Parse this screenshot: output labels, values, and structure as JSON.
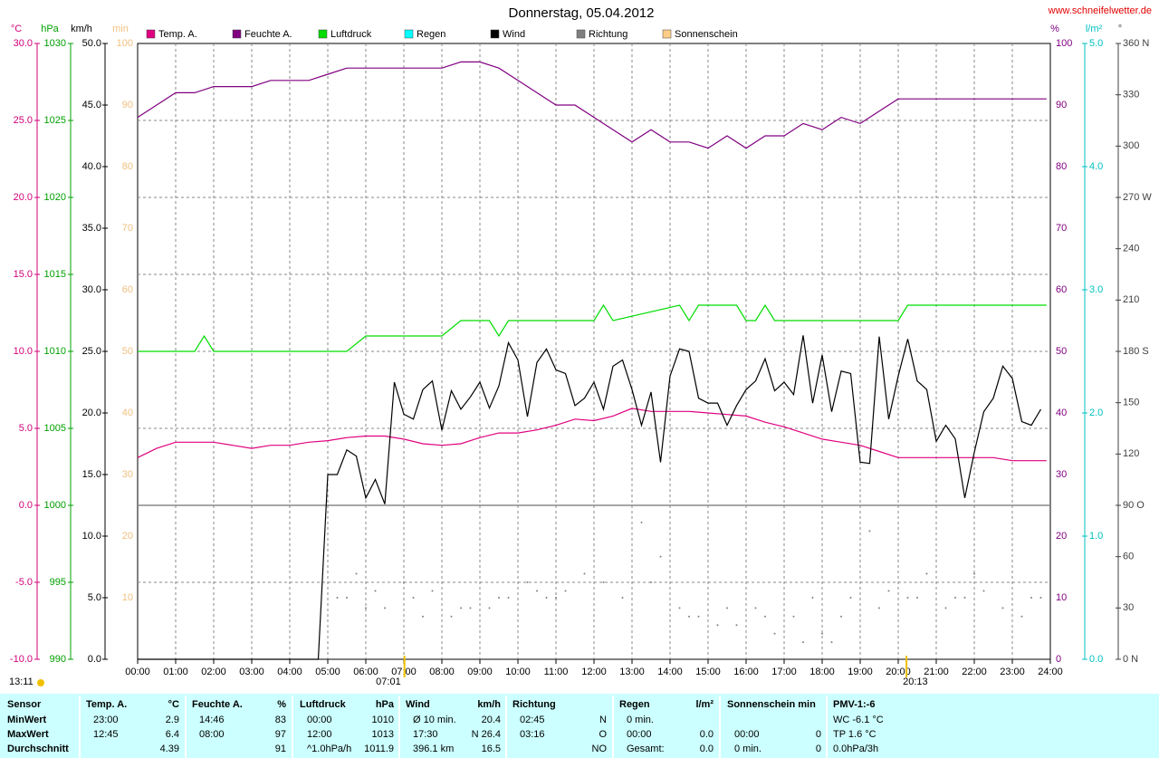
{
  "chart_data": {
    "type": "line",
    "title": "Donnerstag, 05.04.2012",
    "site": "www.schneifelwetter.de",
    "sunrise": "07:01",
    "sunset": "20:13",
    "day_length": "13:11",
    "grid": true,
    "xlim": [
      0,
      24
    ],
    "xticks": [
      {
        "value": 0,
        "label": "00:00"
      },
      {
        "value": 1,
        "label": "01:00"
      },
      {
        "value": 2,
        "label": "02:00"
      },
      {
        "value": 3,
        "label": "03:00"
      },
      {
        "value": 4,
        "label": "04:00"
      },
      {
        "value": 5,
        "label": "05:00"
      },
      {
        "value": 6,
        "label": "06:00"
      },
      {
        "value": 7,
        "label": "07:00"
      },
      {
        "value": 8,
        "label": "08:00"
      },
      {
        "value": 9,
        "label": "09:00"
      },
      {
        "value": 10,
        "label": "10:00"
      },
      {
        "value": 11,
        "label": "11:00"
      },
      {
        "value": 12,
        "label": "12:00"
      },
      {
        "value": 13,
        "label": "13:00"
      },
      {
        "value": 14,
        "label": "14:00"
      },
      {
        "value": 15,
        "label": "15:00"
      },
      {
        "value": 16,
        "label": "16:00"
      },
      {
        "value": 17,
        "label": "17:00"
      },
      {
        "value": 18,
        "label": "18:00"
      },
      {
        "value": 19,
        "label": "19:00"
      },
      {
        "value": 20,
        "label": "20:00"
      },
      {
        "value": 21,
        "label": "21:00"
      },
      {
        "value": 22,
        "label": "22:00"
      },
      {
        "value": 23,
        "label": "23:00"
      },
      {
        "value": 24,
        "label": "24:00"
      }
    ],
    "axes": {
      "temp": {
        "unit": "°C",
        "color": "#d0007a",
        "lim": [
          -10,
          30
        ],
        "ticks": [
          {
            "value": -10,
            "label": "-10.0"
          },
          {
            "value": -5,
            "label": "-5.0"
          },
          {
            "value": 0,
            "label": "0.0"
          },
          {
            "value": 5,
            "label": "5.0"
          },
          {
            "value": 10,
            "label": "10.0"
          },
          {
            "value": 15,
            "label": "15.0"
          },
          {
            "value": 20,
            "label": "20.0"
          },
          {
            "value": 25,
            "label": "25.0"
          },
          {
            "value": 30,
            "label": "30.0"
          }
        ]
      },
      "hpa": {
        "unit": "hPa",
        "color": "#00a000",
        "lim": [
          990,
          1030
        ],
        "ticks": [
          990,
          995,
          1000,
          1005,
          1010,
          1015,
          1020,
          1025,
          1030
        ]
      },
      "kmh": {
        "unit": "km/h",
        "color": "#000000",
        "lim": [
          0,
          50
        ],
        "ticks": [
          {
            "value": 0,
            "label": "0.0"
          },
          {
            "value": 5,
            "label": "5.0"
          },
          {
            "value": 10,
            "label": "10.0"
          },
          {
            "value": 15,
            "label": "15.0"
          },
          {
            "value": 20,
            "label": "20.0"
          },
          {
            "value": 25,
            "label": "25.0"
          },
          {
            "value": 30,
            "label": "30.0"
          },
          {
            "value": 35,
            "label": "35.0"
          },
          {
            "value": 40,
            "label": "40.0"
          },
          {
            "value": 45,
            "label": "45.0"
          },
          {
            "value": 50,
            "label": "50.0"
          }
        ]
      },
      "min": {
        "unit": "min",
        "color": "#f0c080",
        "lim": [
          0,
          100
        ],
        "ticks": [
          10,
          20,
          30,
          40,
          50,
          60,
          70,
          80,
          90,
          100
        ]
      },
      "pct": {
        "unit": "%",
        "color": "#800080",
        "lim": [
          0,
          100
        ],
        "ticks": [
          0,
          10,
          20,
          30,
          40,
          50,
          60,
          70,
          80,
          90,
          100
        ]
      },
      "rain": {
        "unit": "l/m²",
        "color": "#00c0c0",
        "lim": [
          0,
          5
        ],
        "ticks": [
          {
            "value": 0,
            "label": "0.0"
          },
          {
            "value": 1,
            "label": "1.0"
          },
          {
            "value": 2,
            "label": "2.0"
          },
          {
            "value": 3,
            "label": "3.0"
          },
          {
            "value": 4,
            "label": "4.0"
          },
          {
            "value": 5,
            "label": "5.0"
          }
        ]
      },
      "dir": {
        "unit": "°",
        "color": "#404040",
        "lim": [
          0,
          360
        ],
        "ticks": [
          {
            "value": 0,
            "label": "0  N"
          },
          30,
          60,
          {
            "value": 90,
            "label": "90  O"
          },
          120,
          150,
          {
            "value": 180,
            "label": "180  S"
          },
          210,
          240,
          {
            "value": 270,
            "label": "270  W"
          },
          300,
          330,
          {
            "value": 360,
            "label": "360  N"
          }
        ]
      }
    },
    "series": [
      {
        "name": "Temp. A.",
        "color": "#e0007f",
        "axis": "temp",
        "x": [
          0,
          0.5,
          1,
          1.5,
          2,
          2.5,
          3,
          3.5,
          4,
          4.5,
          5,
          5.5,
          6,
          6.5,
          7,
          7.5,
          8,
          8.5,
          9,
          9.5,
          10,
          10.5,
          11,
          11.5,
          12,
          12.5,
          13,
          13.5,
          14,
          14.5,
          15,
          15.5,
          16,
          16.5,
          17,
          17.5,
          18,
          18.5,
          19,
          19.5,
          20,
          20.5,
          21,
          21.5,
          22,
          22.5,
          23,
          23.5,
          23.9
        ],
        "values": [
          3.1,
          3.7,
          4.1,
          4.1,
          4.1,
          3.9,
          3.7,
          3.9,
          3.9,
          4.1,
          4.2,
          4.4,
          4.5,
          4.5,
          4.3,
          4.0,
          3.9,
          4.0,
          4.4,
          4.7,
          4.7,
          4.9,
          5.2,
          5.6,
          5.5,
          5.8,
          6.3,
          6.1,
          6.1,
          6.1,
          6.0,
          5.9,
          5.8,
          5.4,
          5.1,
          4.7,
          4.3,
          4.1,
          3.9,
          3.5,
          3.1,
          3.1,
          3.1,
          3.1,
          3.1,
          3.1,
          2.9,
          2.9,
          2.9
        ]
      },
      {
        "name": "Feuchte A.",
        "color": "#800080",
        "axis": "pct",
        "x": [
          0,
          0.5,
          1,
          1.5,
          2,
          3,
          3.5,
          4.5,
          5,
          5.5,
          8,
          8.5,
          9,
          9.5,
          10,
          10.5,
          11,
          11.5,
          12,
          12.5,
          13,
          13.5,
          14,
          14.5,
          15,
          15.5,
          16,
          16.5,
          17,
          17.5,
          18,
          18.5,
          19,
          19.5,
          20,
          23.9
        ],
        "values": [
          88,
          90,
          92,
          92,
          93,
          93,
          94,
          94,
          95,
          96,
          96,
          97,
          97,
          96,
          94,
          92,
          90,
          90,
          88,
          86,
          84,
          86,
          84,
          84,
          83,
          85,
          83,
          85,
          85,
          87,
          86,
          88,
          87,
          89,
          91,
          91
        ]
      },
      {
        "name": "Luftdruck",
        "color": "#00dd00",
        "axis": "hpa",
        "x": [
          0,
          1.5,
          1.75,
          2,
          5.5,
          6,
          8,
          8.5,
          9.25,
          9.5,
          9.75,
          10,
          12,
          12.25,
          12.5,
          14.25,
          14.5,
          14.75,
          15.75,
          16,
          16.25,
          16.5,
          16.75,
          20,
          20.25,
          23.9
        ],
        "values": [
          1010,
          1010,
          1011,
          1010,
          1010,
          1011,
          1011,
          1012,
          1012,
          1011,
          1012,
          1012,
          1012,
          1013,
          1012,
          1013,
          1012,
          1013,
          1013,
          1012,
          1012,
          1013,
          1012,
          1012,
          1013,
          1013
        ]
      },
      {
        "name": "Regen",
        "color": "#00ffff",
        "axis": "rain"
      },
      {
        "name": "Wind",
        "color": "#000000",
        "axis": "kmh",
        "x": [
          0,
          4.75,
          5,
          5.25,
          5.5,
          5.75,
          6,
          6.25,
          6.5,
          6.75,
          7,
          7.25,
          7.5,
          7.75,
          8,
          8.25,
          8.5,
          8.75,
          9,
          9.25,
          9.5,
          9.75,
          10,
          10.25,
          10.5,
          10.75,
          11,
          11.25,
          11.5,
          11.75,
          12,
          12.25,
          12.5,
          12.75,
          13,
          13.25,
          13.5,
          13.75,
          14,
          14.25,
          14.5,
          14.75,
          15,
          15.25,
          15.5,
          15.75,
          16,
          16.25,
          16.5,
          16.75,
          17,
          17.25,
          17.5,
          17.75,
          18,
          18.25,
          18.5,
          18.75,
          19,
          19.25,
          19.5,
          19.75,
          20,
          20.25,
          20.5,
          20.75,
          21,
          21.25,
          21.5,
          21.75,
          22,
          22.25,
          22.5,
          22.75,
          23,
          23.25,
          23.5,
          23.75
        ],
        "values": [
          0,
          0,
          15.0,
          15.0,
          17.0,
          16.5,
          13.1,
          14.6,
          12.6,
          22.5,
          19.9,
          19.5,
          21.9,
          22.6,
          18.6,
          21.8,
          20.3,
          21.3,
          22.5,
          20.4,
          22.2,
          25.7,
          24.3,
          19.7,
          24.1,
          25.2,
          23.5,
          23.2,
          20.6,
          21.2,
          22.5,
          20.3,
          23.8,
          24.3,
          21.9,
          19.0,
          21.7,
          16.0,
          23.0,
          25.2,
          25.0,
          21.2,
          20.8,
          20.8,
          19.0,
          20.6,
          21.9,
          22.6,
          24.4,
          21.8,
          22.5,
          21.5,
          26.3,
          20.8,
          24.7,
          20.1,
          23.4,
          23.2,
          16.0,
          15.9,
          26.2,
          19.5,
          23.0,
          26.0,
          22.6,
          21.9,
          17.7,
          19.0,
          17.9,
          13.1,
          16.8,
          20.1,
          21.2,
          23.8,
          22.8,
          19.3,
          19.0,
          20.3
        ]
      },
      {
        "name": "Richtung",
        "color": "#808080",
        "axis": "dir",
        "x": [
          5.25,
          5.5,
          5.75,
          6,
          6.25,
          6.5,
          7,
          7.25,
          7.5,
          7.75,
          8.25,
          8.5,
          8.75,
          9.25,
          9.5,
          9.75,
          10.25,
          10.5,
          10.75,
          11,
          11.25,
          11.75,
          12.25,
          12.75,
          13.25,
          13.5,
          13.75,
          14.25,
          14.5,
          14.75,
          15.25,
          15.5,
          15.75,
          16.25,
          16.5,
          16.75,
          17.25,
          17.5,
          17.75,
          18,
          18.25,
          18.5,
          18.75,
          19.25,
          19.5,
          19.75,
          20.25,
          20.5,
          20.75,
          21.25,
          21.5,
          21.75,
          22,
          22.25,
          22.75,
          23.25,
          23.5,
          23.75
        ],
        "values": [
          36,
          36,
          50,
          30,
          40,
          30,
          45,
          36,
          25,
          40,
          25,
          30,
          30,
          30,
          36,
          36,
          45,
          40,
          36,
          36,
          40,
          50,
          45,
          36,
          80,
          45,
          60,
          30,
          25,
          25,
          20,
          30,
          20,
          30,
          25,
          15,
          25,
          10,
          36,
          15,
          10,
          25,
          36,
          75,
          30,
          40,
          36,
          36,
          50,
          30,
          36,
          36,
          50,
          40,
          30,
          25,
          36,
          36
        ]
      },
      {
        "name": "Sonnenschein",
        "color": "#ffcc88",
        "axis": "min"
      }
    ]
  },
  "footer": {
    "sensor": "Sensor",
    "columns": [
      {
        "name": "Temp. A.",
        "unit": "°C"
      },
      {
        "name": "Feuchte A.",
        "unit": "%"
      },
      {
        "name": "Luftdruck",
        "unit": "hPa"
      },
      {
        "name": "Wind",
        "unit": "km/h"
      },
      {
        "name": "Richtung"
      },
      {
        "name": "Regen",
        "unit": "l/m²"
      },
      {
        "name": "Sonnenschein min"
      },
      {
        "name": "PMV-1:-6"
      }
    ],
    "rows": [
      {
        "label": "MinWert",
        "cells": [
          [
            "23:00",
            "2.9"
          ],
          [
            "14:46",
            "83"
          ],
          [
            "00:00",
            "1010"
          ],
          [
            "Ø 10 min.",
            "20.4"
          ],
          [
            "02:45",
            "N"
          ],
          [
            "0 min.",
            null
          ],
          [
            null,
            null
          ],
          [
            "WC -6.1 °C",
            null
          ]
        ]
      },
      {
        "label": "MaxWert",
        "cells": [
          [
            "12:45",
            "6.4"
          ],
          [
            "08:00",
            "97"
          ],
          [
            "12:00",
            "1013"
          ],
          [
            "17:30",
            "N 26.4"
          ],
          [
            "03:16",
            "O"
          ],
          [
            "00:00",
            "0.0"
          ],
          [
            "00:00",
            "0"
          ],
          [
            "TP 1.6 °C",
            null
          ]
        ]
      },
      {
        "label": "Durchschnitt",
        "cells": [
          [
            null,
            "4.39"
          ],
          [
            null,
            "91"
          ],
          [
            "^1.0hPa/h",
            "1011.9"
          ],
          [
            "396.1 km",
            "16.5"
          ],
          [
            null,
            "NO"
          ],
          [
            "Gesamt:",
            "0.0"
          ],
          [
            "0 min.",
            "0"
          ],
          [
            "0.0hPa/3h",
            null
          ]
        ]
      }
    ]
  }
}
